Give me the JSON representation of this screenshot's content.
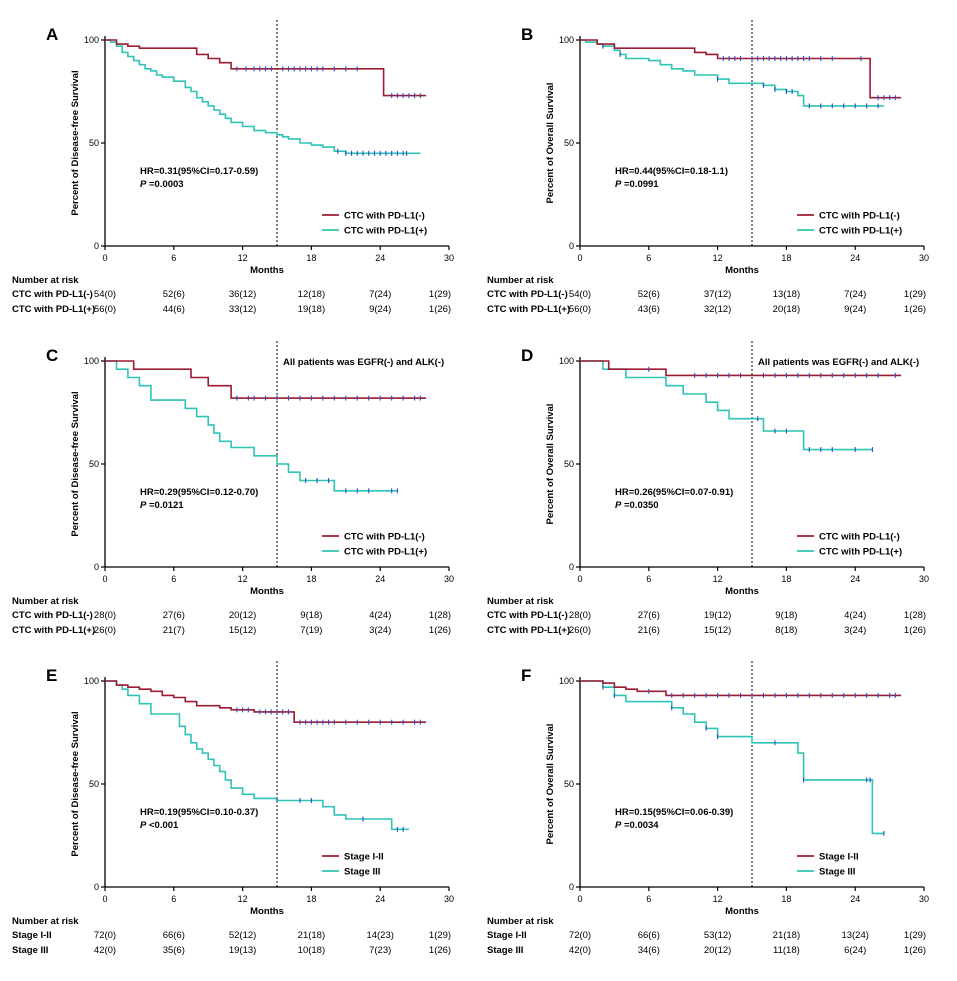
{
  "colors": {
    "neg": "#9b1b30",
    "pos": "#2ec4b6",
    "censor": "#2b50c8",
    "axis": "#000000",
    "ref": "#000000"
  },
  "common": {
    "xlabel": "Months",
    "risk_header": "Number at risk"
  },
  "chart_data": [
    {
      "type": "line",
      "label": "A",
      "ylabel": "Percent of Disease-free Survival",
      "xlim": [
        0,
        30
      ],
      "ylim": [
        0,
        100
      ],
      "xticks": [
        "0",
        "6",
        "12",
        "18",
        "24",
        "30"
      ],
      "yticks": [
        "0",
        "50",
        "100"
      ],
      "vline": 15,
      "note": "",
      "hr": {
        "line1": "HR=0.31(95%CI=0.17-0.59)",
        "p_label": "P",
        "p_value": " =0.0003"
      },
      "series": [
        {
          "name": "CTC with PD-L1(-)",
          "color": "#9b1b30",
          "x": [
            0,
            1,
            2,
            3,
            7,
            8,
            9,
            10,
            11,
            24.3,
            24.3,
            28
          ],
          "y": [
            100,
            98,
            97,
            96,
            96,
            93,
            91,
            89,
            86,
            86,
            73,
            73
          ],
          "censor_x": [
            11.5,
            12.3,
            13,
            13.5,
            14,
            14.5,
            15.5,
            16,
            16.5,
            17,
            17.5,
            18,
            18.5,
            19,
            20,
            21,
            22,
            25,
            25.5,
            26,
            26.5,
            27,
            27.5
          ]
        },
        {
          "name": "CTC with PD-L1(+)",
          "color": "#2ec4b6",
          "x": [
            0,
            0.5,
            1,
            1.5,
            2,
            2.5,
            3,
            3.5,
            4,
            4.5,
            5,
            6,
            7,
            7.5,
            8,
            8.5,
            9,
            9.5,
            10,
            10.5,
            11,
            12,
            13,
            14,
            15,
            15.5,
            16,
            17,
            18,
            19,
            20,
            21,
            22,
            23,
            24,
            25,
            26.5,
            27.5
          ],
          "y": [
            100,
            99,
            97,
            94,
            92,
            90,
            88,
            86,
            85,
            83,
            82,
            80,
            77,
            75,
            72,
            70,
            68,
            66,
            64,
            62,
            60,
            58,
            56,
            55,
            54,
            53,
            52,
            50,
            49,
            48,
            46,
            45,
            45,
            45,
            45,
            45,
            45,
            45
          ],
          "censor_x": [
            20.3,
            21,
            21.5,
            22,
            22.5,
            23,
            23.5,
            24,
            24.5,
            25,
            25.5,
            26,
            26.3
          ]
        }
      ],
      "risk": [
        {
          "label": "CTC with PD-L1(-)",
          "values": [
            "54(0)",
            "52(6)",
            "36(12)",
            "12(18)",
            "7(24)",
            "1(29)"
          ]
        },
        {
          "label": "CTC with PD-L1(+)",
          "values": [
            "56(0)",
            "44(6)",
            "33(12)",
            "19(18)",
            "9(24)",
            "1(26)"
          ]
        }
      ]
    },
    {
      "type": "line",
      "label": "B",
      "ylabel": "Percent of Overall Survival",
      "xlim": [
        0,
        30
      ],
      "ylim": [
        0,
        100
      ],
      "xticks": [
        "0",
        "6",
        "12",
        "18",
        "24",
        "30"
      ],
      "yticks": [
        "0",
        "50",
        "100"
      ],
      "vline": 15,
      "note": "",
      "hr": {
        "line1": "HR=0.44(95%CI=0.18-1.1)",
        "p_label": "P",
        "p_value": " =0.0991"
      },
      "series": [
        {
          "name": "CTC with PD-L1(-)",
          "color": "#9b1b30",
          "x": [
            0,
            1.5,
            3,
            7,
            10,
            11,
            12,
            25.3,
            25.3,
            28
          ],
          "y": [
            100,
            98,
            96,
            96,
            94,
            93,
            91,
            91,
            72,
            72
          ],
          "censor_x": [
            12.5,
            13,
            13.5,
            14,
            15,
            15.5,
            16,
            16.5,
            17,
            17.5,
            18,
            18.5,
            19,
            19.5,
            20,
            21,
            22,
            24.5,
            26,
            26.5,
            27,
            27.5
          ]
        },
        {
          "name": "CTC with PD-L1(+)",
          "color": "#2ec4b6",
          "x": [
            0,
            0.5,
            1.5,
            2,
            3,
            3.5,
            4,
            6,
            7,
            8,
            9,
            10,
            12,
            13,
            15,
            16,
            17,
            18,
            19,
            19.5,
            26.5
          ],
          "y": [
            100,
            99,
            98,
            97,
            95,
            93,
            91,
            90,
            88,
            86,
            85,
            83,
            81,
            79,
            79,
            78,
            76,
            75,
            73,
            68,
            68
          ],
          "censor_x": [
            2,
            3.5,
            12,
            16,
            17,
            18,
            18.5,
            20,
            21,
            22,
            23,
            24,
            25,
            26
          ]
        }
      ],
      "risk": [
        {
          "label": "CTC with PD-L1(-)",
          "values": [
            "54(0)",
            "52(6)",
            "37(12)",
            "13(18)",
            "7(24)",
            "1(29)"
          ]
        },
        {
          "label": "CTC with PD-L1(+)",
          "values": [
            "56(0)",
            "43(6)",
            "32(12)",
            "20(18)",
            "9(24)",
            "1(26)"
          ]
        }
      ]
    },
    {
      "type": "line",
      "label": "C",
      "ylabel": "Percent of Disease-free Survival",
      "xlim": [
        0,
        30
      ],
      "ylim": [
        0,
        100
      ],
      "xticks": [
        "0",
        "6",
        "12",
        "18",
        "24",
        "30"
      ],
      "yticks": [
        "0",
        "50",
        "100"
      ],
      "vline": 15,
      "note": "All patients was EGFR(-) and ALK(-)",
      "hr": {
        "line1": "HR=0.29(95%CI=0.12-0.70)",
        "p_label": "P",
        "p_value": " =0.0121"
      },
      "series": [
        {
          "name": "CTC with PD-L1(-)",
          "color": "#9b1b30",
          "x": [
            0,
            2.5,
            7,
            7.5,
            9,
            11,
            28
          ],
          "y": [
            100,
            96,
            96,
            92,
            88,
            82,
            82
          ],
          "censor_x": [
            11.5,
            12.5,
            13,
            14,
            15,
            16,
            17,
            18,
            19,
            20,
            21,
            22,
            23,
            24,
            25,
            26,
            27,
            27.5
          ]
        },
        {
          "name": "CTC with PD-L1(+)",
          "color": "#2ec4b6",
          "x": [
            0,
            1,
            2,
            3,
            4,
            7,
            8,
            9,
            9.5,
            10,
            11,
            12,
            13,
            14,
            15,
            16,
            17,
            18,
            19,
            20,
            21,
            25.5
          ],
          "y": [
            100,
            96,
            92,
            88,
            81,
            77,
            73,
            69,
            65,
            61,
            58,
            58,
            54,
            54,
            50,
            46,
            42,
            42,
            42,
            37,
            37,
            37
          ],
          "censor_x": [
            17.5,
            18.5,
            19.5,
            21,
            22,
            23,
            25,
            25.5
          ]
        }
      ],
      "risk": [
        {
          "label": "CTC with PD-L1(-)",
          "values": [
            "28(0)",
            "27(6)",
            "20(12)",
            "9(18)",
            "4(24)",
            "1(28)"
          ]
        },
        {
          "label": "CTC with PD-L1(+)",
          "values": [
            "26(0)",
            "21(7)",
            "15(12)",
            "7(19)",
            "3(24)",
            "1(26)"
          ]
        }
      ]
    },
    {
      "type": "line",
      "label": "D",
      "ylabel": "Percent of Overall Survival",
      "xlim": [
        0,
        30
      ],
      "ylim": [
        0,
        100
      ],
      "xticks": [
        "0",
        "6",
        "12",
        "18",
        "24",
        "30"
      ],
      "yticks": [
        "0",
        "50",
        "100"
      ],
      "vline": 15,
      "note": "All patients was EGFR(-) and ALK(-)",
      "hr": {
        "line1": "HR=0.26(95%CI=0.07-0.91)",
        "p_label": "P",
        "p_value": " =0.0350"
      },
      "series": [
        {
          "name": "CTC with PD-L1(-)",
          "color": "#9b1b30",
          "x": [
            0,
            2.5,
            7.5,
            28
          ],
          "y": [
            100,
            96,
            93,
            93
          ],
          "censor_x": [
            6,
            10,
            11,
            12,
            13,
            14,
            16,
            17,
            18,
            19,
            20,
            21,
            22,
            23,
            24,
            25,
            26,
            27.5
          ]
        },
        {
          "name": "CTC with PD-L1(+)",
          "color": "#2ec4b6",
          "x": [
            0,
            1,
            2,
            3,
            4,
            7.5,
            9,
            11,
            12,
            13,
            15,
            16,
            17,
            18,
            19,
            19.5,
            25.5
          ],
          "y": [
            100,
            100,
            96,
            96,
            92,
            88,
            84,
            80,
            76,
            72,
            72,
            66,
            66,
            66,
            66,
            57,
            57
          ],
          "censor_x": [
            15.5,
            17,
            18,
            20,
            21,
            22,
            24,
            25.5
          ]
        }
      ],
      "risk": [
        {
          "label": "CTC with PD-L1(-)",
          "values": [
            "28(0)",
            "27(6)",
            "19(12)",
            "9(18)",
            "4(24)",
            "1(28)"
          ]
        },
        {
          "label": "CTC with PD-L1(+)",
          "values": [
            "26(0)",
            "21(6)",
            "15(12)",
            "8(18)",
            "3(24)",
            "1(26)"
          ]
        }
      ]
    },
    {
      "type": "line",
      "label": "E",
      "ylabel": "Percent of Disease-free Survival",
      "xlim": [
        0,
        30
      ],
      "ylim": [
        0,
        100
      ],
      "xticks": [
        "0",
        "6",
        "12",
        "18",
        "24",
        "30"
      ],
      "yticks": [
        "0",
        "50",
        "100"
      ],
      "vline": 15,
      "note": "",
      "hr": {
        "line1": "HR=0.19(95%CI=0.10-0.37)",
        "p_label": "P",
        "p_value": " <0.001"
      },
      "series": [
        {
          "name": "Stage I-II",
          "color": "#9b1b30",
          "x": [
            0,
            1,
            2,
            3,
            4,
            5,
            6,
            7,
            8,
            10,
            11,
            13,
            16,
            16.5,
            28
          ],
          "y": [
            100,
            98,
            97,
            96,
            95,
            93,
            92,
            90,
            88,
            87,
            86,
            85,
            85,
            80,
            80
          ],
          "censor_x": [
            11.5,
            12,
            12.5,
            13.5,
            14,
            14.5,
            15,
            15.5,
            16,
            17,
            17.5,
            18,
            18.5,
            19,
            19.5,
            20,
            21,
            22,
            23,
            24,
            25,
            26,
            27,
            27.5
          ]
        },
        {
          "name": "Stage III",
          "color": "#2ec4b6",
          "x": [
            0,
            1,
            1.5,
            2,
            3,
            4,
            6,
            6.5,
            7,
            7.5,
            8,
            8.5,
            9,
            9.5,
            10,
            10.5,
            11,
            12,
            13,
            15,
            18,
            19,
            20,
            21,
            22,
            24,
            25,
            26.5
          ],
          "y": [
            100,
            98,
            96,
            93,
            89,
            84,
            84,
            78,
            74,
            70,
            67,
            65,
            62,
            59,
            56,
            52,
            48,
            45,
            43,
            42,
            42,
            39,
            35,
            33,
            33,
            33,
            28,
            28
          ],
          "censor_x": [
            15,
            17,
            18,
            22.5,
            25.5,
            26
          ]
        }
      ],
      "risk": [
        {
          "label": "Stage I-II",
          "values": [
            "72(0)",
            "66(6)",
            "52(12)",
            "21(18)",
            "14(23)",
            "1(29)"
          ]
        },
        {
          "label": "Stage III",
          "values": [
            "42(0)",
            "35(6)",
            "19(13)",
            "10(18)",
            "7(23)",
            "1(26)"
          ]
        }
      ]
    },
    {
      "type": "line",
      "label": "F",
      "ylabel": "Percent of Overall Survival",
      "xlim": [
        0,
        30
      ],
      "ylim": [
        0,
        100
      ],
      "xticks": [
        "0",
        "6",
        "12",
        "18",
        "24",
        "30"
      ],
      "yticks": [
        "0",
        "50",
        "100"
      ],
      "vline": 15,
      "note": "",
      "hr": {
        "line1": "HR=0.15(95%CI=0.06-0.39)",
        "p_label": "P",
        "p_value": " =0.0034"
      },
      "series": [
        {
          "name": "Stage I-II",
          "color": "#9b1b30",
          "x": [
            0,
            2,
            3,
            4,
            5,
            7.5,
            28
          ],
          "y": [
            100,
            99,
            97,
            96,
            95,
            93,
            93
          ],
          "censor_x": [
            6,
            8,
            9,
            10,
            11,
            12,
            13,
            14,
            15,
            16,
            17,
            18,
            19,
            20,
            21,
            22,
            23,
            24,
            25,
            26,
            27,
            27.5
          ]
        },
        {
          "name": "Stage III",
          "color": "#2ec4b6",
          "x": [
            0,
            2,
            3,
            4,
            7,
            8,
            9,
            10,
            11,
            12,
            15,
            16,
            19,
            19.5,
            25.3,
            25.5,
            26.5
          ],
          "y": [
            100,
            97,
            93,
            90,
            90,
            87,
            84,
            80,
            77,
            73,
            70,
            70,
            65,
            52,
            52,
            26,
            26
          ],
          "censor_x": [
            2,
            3,
            8,
            11,
            12,
            17,
            19.5,
            25,
            25.3,
            26.5
          ]
        }
      ],
      "risk": [
        {
          "label": "Stage I-II",
          "values": [
            "72(0)",
            "66(6)",
            "53(12)",
            "21(18)",
            "13(24)",
            "1(29)"
          ]
        },
        {
          "label": "Stage III",
          "values": [
            "42(0)",
            "34(6)",
            "20(12)",
            "11(18)",
            "6(24)",
            "1(26)"
          ]
        }
      ]
    }
  ]
}
